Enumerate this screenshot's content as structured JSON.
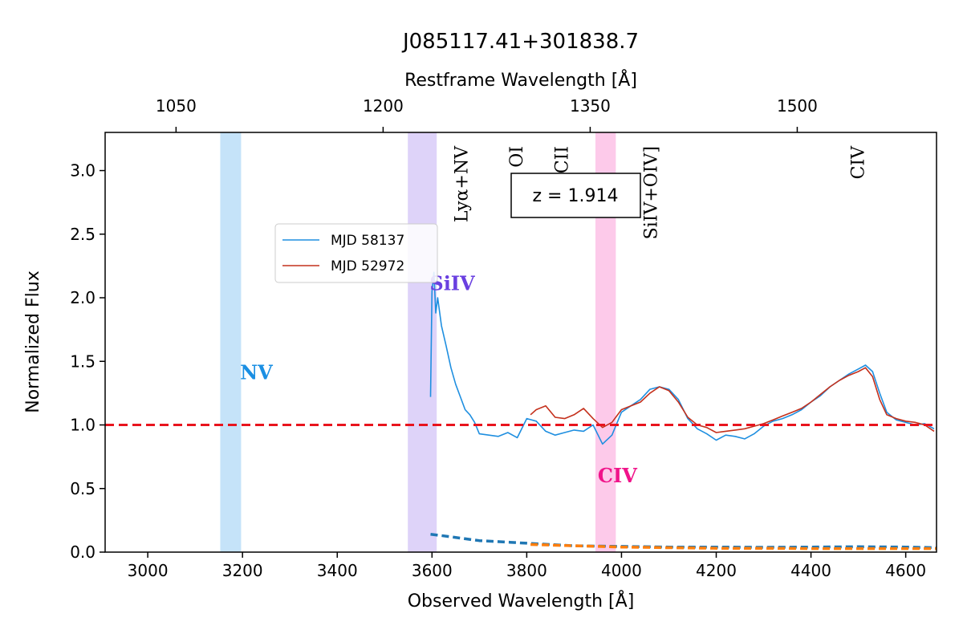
{
  "chart_data": {
    "type": "line",
    "title": "J085117.41+301838.7",
    "xlabel": "Observed Wavelength [Å]",
    "ylabel": "Normalized Flux",
    "x2label": "Restframe Wavelength [Å]",
    "xlim": [
      2910,
      4665
    ],
    "ylim": [
      0,
      3.3
    ],
    "redshift_label": "z = 1.914",
    "xticks": [
      3000,
      3200,
      3400,
      3600,
      3800,
      4000,
      4200,
      4400,
      4600
    ],
    "yticks": [
      0.0,
      0.5,
      1.0,
      1.5,
      2.0,
      2.5,
      3.0
    ],
    "rest_ticks": [
      1050,
      1200,
      1350,
      1500
    ],
    "reference_line": {
      "y": 1.0,
      "color": "#e8141e",
      "style": "dashed"
    },
    "bands": [
      {
        "label": "NV",
        "x0": 3153,
        "x1": 3197,
        "color": "#9fd0f5",
        "label_color": "#1a8fe3",
        "label_x": 3195,
        "label_y": 1.36
      },
      {
        "label": "SiIV",
        "x0": 3549,
        "x1": 3610,
        "color": "#c8b6f5",
        "label_color": "#6a40e0",
        "label_x": 3595,
        "label_y": 2.06
      },
      {
        "label": "CIV",
        "x0": 3945,
        "x1": 3988,
        "color": "#fca6dc",
        "label_color": "#f0148a",
        "label_x": 3950,
        "label_y": 0.55
      }
    ],
    "line_labels": [
      {
        "text": "Lyα+NV",
        "x": 3675
      },
      {
        "text": "OI",
        "x": 3791
      },
      {
        "text": "CII",
        "x": 3887
      },
      {
        "text": "SiIV+OIV]",
        "x": 4075
      },
      {
        "text": "CIV",
        "x": 4512
      }
    ],
    "legend": {
      "placement": "upper-left-center"
    },
    "series": [
      {
        "name": "MJD 58137",
        "color": "#1f8fe0",
        "x": [
          3597,
          3600,
          3604,
          3608,
          3612,
          3620,
          3630,
          3640,
          3650,
          3660,
          3670,
          3680,
          3690,
          3700,
          3720,
          3740,
          3760,
          3780,
          3800,
          3820,
          3840,
          3860,
          3880,
          3900,
          3920,
          3940,
          3960,
          3980,
          4000,
          4020,
          4040,
          4060,
          4080,
          4100,
          4120,
          4140,
          4160,
          4180,
          4200,
          4220,
          4240,
          4260,
          4280,
          4300,
          4320,
          4340,
          4360,
          4380,
          4400,
          4420,
          4440,
          4460,
          4480,
          4500,
          4515,
          4530,
          4545,
          4560,
          4580,
          4600,
          4620,
          4640,
          4660
        ],
        "y": [
          1.22,
          2.05,
          2.2,
          1.88,
          2.0,
          1.78,
          1.62,
          1.45,
          1.32,
          1.22,
          1.12,
          1.08,
          1.02,
          0.93,
          0.92,
          0.91,
          0.94,
          0.9,
          1.05,
          1.03,
          0.95,
          0.92,
          0.94,
          0.96,
          0.95,
          1.0,
          0.85,
          0.92,
          1.1,
          1.15,
          1.2,
          1.28,
          1.3,
          1.28,
          1.2,
          1.05,
          0.97,
          0.93,
          0.88,
          0.92,
          0.91,
          0.89,
          0.93,
          0.99,
          1.03,
          1.05,
          1.08,
          1.12,
          1.18,
          1.23,
          1.3,
          1.35,
          1.4,
          1.44,
          1.47,
          1.42,
          1.25,
          1.1,
          1.04,
          1.02,
          1.0,
          1.01,
          0.97
        ]
      },
      {
        "name": "MJD 52972",
        "color": "#c4301c",
        "x": [
          3808,
          3820,
          3840,
          3860,
          3880,
          3900,
          3920,
          3940,
          3960,
          3980,
          4000,
          4020,
          4040,
          4060,
          4080,
          4100,
          4120,
          4140,
          4160,
          4180,
          4200,
          4220,
          4240,
          4260,
          4280,
          4300,
          4320,
          4340,
          4360,
          4380,
          4400,
          4420,
          4440,
          4460,
          4480,
          4500,
          4515,
          4530,
          4545,
          4560,
          4580,
          4600,
          4620,
          4640,
          4660
        ],
        "y": [
          1.08,
          1.12,
          1.15,
          1.06,
          1.05,
          1.08,
          1.13,
          1.05,
          0.98,
          1.02,
          1.12,
          1.15,
          1.18,
          1.25,
          1.3,
          1.27,
          1.18,
          1.06,
          1.0,
          0.98,
          0.94,
          0.95,
          0.96,
          0.97,
          0.99,
          1.01,
          1.04,
          1.07,
          1.1,
          1.13,
          1.18,
          1.24,
          1.3,
          1.35,
          1.39,
          1.42,
          1.45,
          1.38,
          1.2,
          1.08,
          1.05,
          1.03,
          1.02,
          1.0,
          0.95
        ]
      },
      {
        "name": "",
        "color": "#1f77b4",
        "style": "dashed",
        "x": [
          3597,
          3620,
          3700,
          3800,
          3900,
          4000,
          4100,
          4200,
          4300,
          4400,
          4500,
          4600,
          4665
        ],
        "y": [
          0.14,
          0.13,
          0.09,
          0.07,
          0.05,
          0.045,
          0.04,
          0.04,
          0.038,
          0.04,
          0.042,
          0.04,
          0.035
        ]
      },
      {
        "name": "",
        "color": "#ff7f0e",
        "style": "dashed",
        "x": [
          3808,
          3900,
          4000,
          4100,
          4200,
          4300,
          4400,
          4500,
          4600,
          4665
        ],
        "y": [
          0.06,
          0.05,
          0.04,
          0.035,
          0.03,
          0.03,
          0.028,
          0.028,
          0.028,
          0.028
        ]
      }
    ]
  }
}
